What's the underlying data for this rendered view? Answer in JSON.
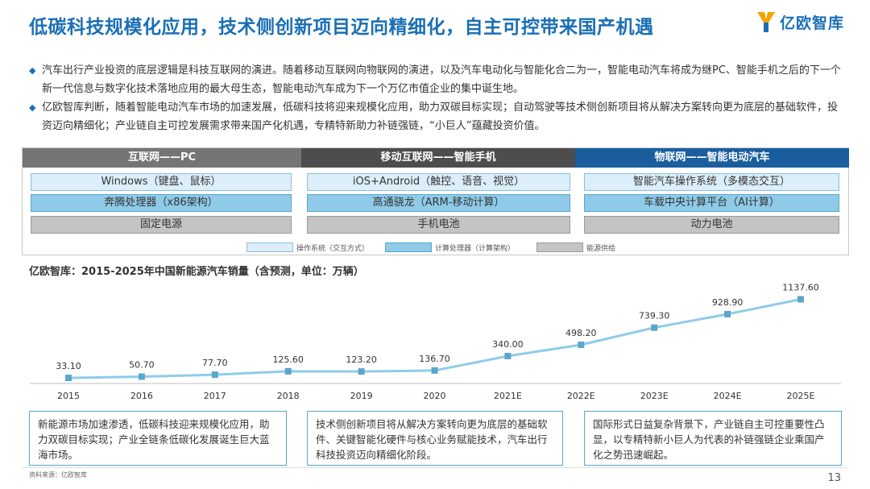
{
  "header": {
    "title": "低碳科技规模化应用，技术侧创新项目迈向精细化，自主可控带来国产机遇",
    "logo_text": "亿欧智库"
  },
  "bullets": [
    "汽车出行产业投资的底层逻辑是科技互联网的演进。随着移动互联网向物联网的演进，以及汽车电动化与智能化合二为一，智能电动汽车将成为继PC、智能手机之后的下一个新一代信息与数字化技术落地应用的最大母生态，智能电动汽车成为下一个万亿市值企业的集中诞生地。",
    "亿欧智库判断，随着智能电动汽车市场的加速发展，低碳科技将迎来规模化应用，助力双碳目标实现；自动驾驶等技术侧创新项目将从解决方案转向更为底层的基础软件，投资迈向精细化；产业链自主可控发展需求带来国产化机遇，专精特新助力补链强链，“小巨人”蕴藏投资价值。"
  ],
  "eras": [
    {
      "head": "互联网——PC",
      "color": "#757575",
      "os": "Windows（键盘、鼠标）",
      "cpu": "奔腾处理器（x86架构）",
      "power": "固定电源"
    },
    {
      "head": "移动互联网——智能手机",
      "color": "#4d4d4d",
      "os": "iOS+Android（触控、语音、视觉）",
      "cpu": "高通骁龙（ARM-移动计算）",
      "power": "手机电池"
    },
    {
      "head": "物联网——智能电动汽车",
      "color": "#1a5e9e",
      "os": "智能汽车操作系统（多模态交互）",
      "cpu": "车载中央计算平台（AI计算）",
      "power": "动力电池"
    }
  ],
  "legend": {
    "os": "操作系统（交互方式）",
    "cpu": "计算处理器（计算架构）",
    "power": "能源供给"
  },
  "chart_data": {
    "type": "line",
    "title": "亿欧智库：2015-2025年中国新能源汽车销量（含预测，单位：万辆）",
    "categories": [
      "2015",
      "2016",
      "2017",
      "2018",
      "2019",
      "2020",
      "2021E",
      "2022E",
      "2023E",
      "2024E",
      "2025E"
    ],
    "values": [
      33.1,
      50.7,
      77.7,
      125.6,
      123.2,
      136.7,
      340.0,
      498.2,
      739.3,
      928.9,
      1137.6
    ],
    "value_labels": [
      "33.10",
      "50.70",
      "77.70",
      "125.60",
      "123.20",
      "136.70",
      "340.00",
      "498.20",
      "739.30",
      "928.90",
      "1137.60"
    ],
    "ylim": [
      0,
      1200
    ],
    "grid": false,
    "line_color": "#8fcbe8",
    "marker_color": "#5aa6cc"
  },
  "boxes": [
    "新能源市场加速渗透，低碳科技迎来规模化应用，助力双碳目标实现；产业全链条低碳化发展诞生巨大蓝海市场。",
    "技术侧创新项目将从解决方案转向更为底层的基础软件、关键智能化硬件与核心业务赋能技术，汽车出行科技投资迈向精细化阶段。",
    "国际形式日益复杂背景下，产业链自主可控重要性凸显，以专精特新小巨人为代表的补链强链企业乘国产化之势迅速崛起。"
  ],
  "footer": {
    "source": "资料来源：亿欧智库",
    "page": "13"
  },
  "colors": {
    "title_blue": "#1a6fb5",
    "os_fill": "#dbeef9",
    "cpu_fill": "#8fcbe8",
    "power_fill": "#c4c4c4"
  }
}
